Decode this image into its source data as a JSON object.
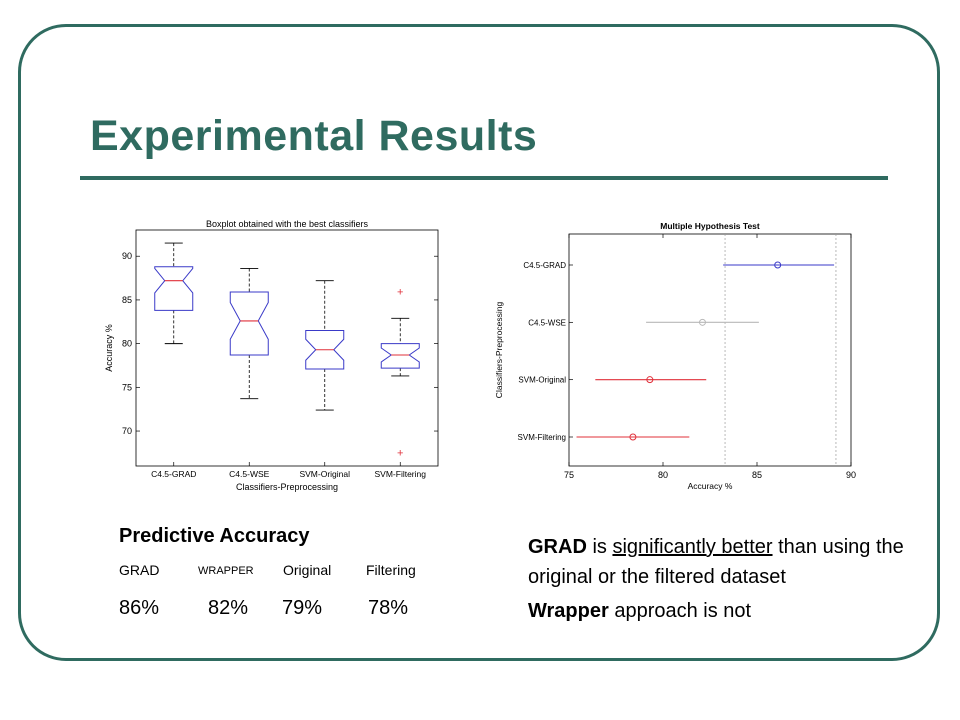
{
  "page": {
    "title": "Experimental Results",
    "colors": {
      "accent": "#2f6b60",
      "box": "#3a3ac8",
      "median": "#e0303a",
      "outlier": "#e0303a",
      "grey": "#b8b8b8"
    }
  },
  "predictive_accuracy": {
    "heading": "Predictive Accuracy",
    "columns": [
      {
        "label": "GRAD",
        "value": "86%"
      },
      {
        "label": "WRAPPER",
        "value": "82%"
      },
      {
        "label": "Original",
        "value": "79%"
      },
      {
        "label": "Filtering",
        "value": "78%"
      }
    ]
  },
  "conclusion": {
    "line1_bold": "GRAD",
    "line1_pre": " is ",
    "line1_underline": "significantly better",
    "line1_post": " than using the original or the filtered dataset",
    "line2_bold": "Wrapper",
    "line2_rest": " approach is not"
  },
  "chart_data": [
    {
      "type": "boxplot",
      "title": "Boxplot obtained with the best classifiers",
      "xlabel": "Classifiers-Preprocessing",
      "ylabel": "Accuracy %",
      "ylim": [
        66,
        93
      ],
      "yticks": [
        70,
        75,
        80,
        85,
        90
      ],
      "grid": false,
      "categories": [
        "C4.5-GRAD",
        "C4.5-WSE",
        "SVM-Original",
        "SVM-Filtering"
      ],
      "boxes": [
        {
          "whisker_low": 80.0,
          "q1": 83.8,
          "median": 87.2,
          "q3": 88.8,
          "whisker_high": 91.5,
          "notch_low": 85.8,
          "notch_high": 88.6,
          "outliers": []
        },
        {
          "whisker_low": 73.7,
          "q1": 78.7,
          "median": 82.6,
          "q3": 85.9,
          "whisker_high": 88.6,
          "notch_low": 80.5,
          "notch_high": 84.7,
          "outliers": []
        },
        {
          "whisker_low": 72.4,
          "q1": 77.1,
          "median": 79.3,
          "q3": 81.5,
          "whisker_high": 87.2,
          "notch_low": 78.1,
          "notch_high": 80.5,
          "outliers": []
        },
        {
          "whisker_low": 76.3,
          "q1": 77.2,
          "median": 78.7,
          "q3": 80.0,
          "whisker_high": 82.9,
          "notch_low": 77.9,
          "notch_high": 79.5,
          "outliers": [
            85.9,
            67.5
          ]
        }
      ]
    },
    {
      "type": "interval",
      "title": "Multiple Hypothesis Test",
      "xlabel": "Accuracy %",
      "ylabel": "Classifiers-Preprocessing",
      "xlim": [
        75,
        90
      ],
      "xticks": [
        75,
        80,
        85,
        90
      ],
      "reference_lines": [
        83.3,
        89.2
      ],
      "groups": [
        {
          "name": "C4.5-GRAD",
          "mean": 86.1,
          "low": 83.2,
          "high": 89.1,
          "color": "#3a3ac8"
        },
        {
          "name": "C4.5-WSE",
          "mean": 82.1,
          "low": 79.1,
          "high": 85.1,
          "color": "#b8b8b8"
        },
        {
          "name": "SVM-Original",
          "mean": 79.3,
          "low": 76.4,
          "high": 82.3,
          "color": "#e0303a"
        },
        {
          "name": "SVM-Filtering",
          "mean": 78.4,
          "low": 75.4,
          "high": 81.4,
          "color": "#e0303a"
        }
      ]
    }
  ]
}
